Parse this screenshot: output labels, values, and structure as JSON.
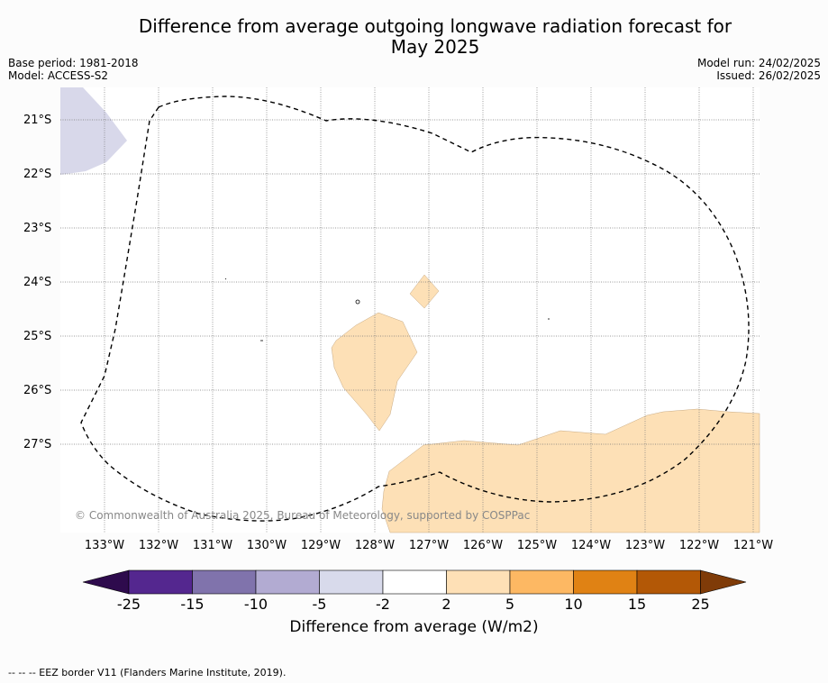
{
  "title_line1": "Difference from average outgoing longwave radiation forecast for",
  "title_line2": "May 2025",
  "base_period": "Base period: 1981-2018",
  "model": "Model: ACCESS-S2",
  "model_run": "Model run: 24/02/2025",
  "issued": "Issued: 26/02/2025",
  "map": {
    "lat_labels": [
      "21°S",
      "22°S",
      "23°S",
      "24°S",
      "25°S",
      "26°S",
      "27°S"
    ],
    "lon_labels": [
      "133°W",
      "132°W",
      "131°W",
      "130°W",
      "129°W",
      "128°W",
      "127°W",
      "126°W",
      "125°W",
      "124°W",
      "123°W",
      "122°W",
      "121°W"
    ],
    "credit": "© Commonwealth of Australia 2025, Bureau of Meteorology, supported by COSPPac",
    "anomaly_colors": {
      "neg_2_to_5": "#d8d8ea",
      "pos_2_to_5": "#fde0b6"
    }
  },
  "colorbar": {
    "labels": [
      "-25",
      "-15",
      "-10",
      "-5",
      "-2",
      "2",
      "5",
      "10",
      "15",
      "25"
    ],
    "colors": [
      "#2e0b4d",
      "#54278f",
      "#8073ac",
      "#b2abd2",
      "#d8daeb",
      "#ffffff",
      "#fee0b6",
      "#fdb863",
      "#e08214",
      "#b35806",
      "#7f3b08"
    ],
    "title": "Difference from average (W/m2)"
  },
  "footer": "-- -- -- EEZ border V11 (Flanders Marine Institute, 2019)."
}
